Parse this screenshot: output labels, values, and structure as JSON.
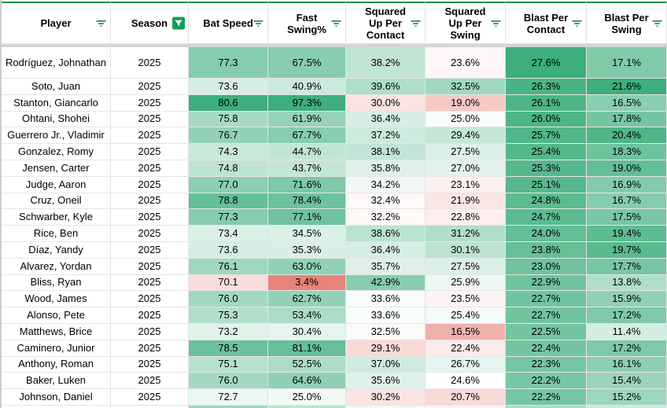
{
  "app": "spreadsheet-filtered-table",
  "columns": [
    {
      "id": "player",
      "label": "Player",
      "type": "text",
      "filter": "inactive"
    },
    {
      "id": "season",
      "label": "Season",
      "type": "text",
      "filter": "active"
    },
    {
      "id": "bat_speed",
      "label": "Bat Speed",
      "type": "heat",
      "suffix": "",
      "filter": "inactive",
      "scale": {
        "min": 65.0,
        "mid": 71.8,
        "max": 80.6
      }
    },
    {
      "id": "fast_swing_pct",
      "label": "Fast Swing%",
      "type": "heat",
      "suffix": "%",
      "filter": "inactive",
      "scale": {
        "min": 2.5,
        "mid": 20.0,
        "max": 97.3
      }
    },
    {
      "id": "squared_up_per_contact",
      "label": "Squared Up Per Contact",
      "type": "heat",
      "suffix": "%",
      "filter": "inactive",
      "scale": {
        "min": 19.0,
        "mid": 33.0,
        "max": 49.0
      }
    },
    {
      "id": "squared_up_per_swing",
      "label": "Squared Up Per Swing",
      "type": "heat",
      "suffix": "%",
      "filter": "inactive",
      "scale": {
        "min": 11.0,
        "mid": 24.5,
        "max": 41.0
      }
    },
    {
      "id": "blast_per_contact",
      "label": "Blast Per Contact",
      "type": "heat",
      "suffix": "%",
      "filter": "inactive",
      "scale": {
        "min": 0.0,
        "mid": 9.6,
        "max": 27.6
      }
    },
    {
      "id": "blast_per_swing",
      "label": "Blast Per Swing",
      "type": "heat",
      "suffix": "%",
      "filter": "inactive",
      "scale": {
        "min": 0.0,
        "mid": 8.5,
        "max": 21.6
      }
    }
  ],
  "chart_data": {
    "type": "table",
    "title": "Bat tracking leaderboard, 2025 season, sorted by Blast Per Contact",
    "categories": [
      "Player",
      "Season",
      "Bat Speed",
      "Fast Swing%",
      "Squared Up Per Contact",
      "Squared Up Per Swing",
      "Blast Per Contact",
      "Blast Per Swing"
    ],
    "rows": [
      {
        "player": "Rodríguez, Johnathan",
        "season": "2025",
        "bat_speed": 77.3,
        "fast_swing_pct": 67.5,
        "squared_up_per_contact": 38.2,
        "squared_up_per_swing": 23.6,
        "blast_per_contact": 27.6,
        "blast_per_swing": 17.1
      },
      {
        "player": "Soto, Juan",
        "season": "2025",
        "bat_speed": 73.6,
        "fast_swing_pct": 40.9,
        "squared_up_per_contact": 39.6,
        "squared_up_per_swing": 32.5,
        "blast_per_contact": 26.3,
        "blast_per_swing": 21.6
      },
      {
        "player": "Stanton, Giancarlo",
        "season": "2025",
        "bat_speed": 80.6,
        "fast_swing_pct": 97.3,
        "squared_up_per_contact": 30.0,
        "squared_up_per_swing": 19.0,
        "blast_per_contact": 26.1,
        "blast_per_swing": 16.5
      },
      {
        "player": "Ohtani, Shohei",
        "season": "2025",
        "bat_speed": 75.8,
        "fast_swing_pct": 61.9,
        "squared_up_per_contact": 36.4,
        "squared_up_per_swing": 25.0,
        "blast_per_contact": 26.0,
        "blast_per_swing": 17.8
      },
      {
        "player": "Guerrero Jr., Vladimir",
        "season": "2025",
        "bat_speed": 76.7,
        "fast_swing_pct": 67.7,
        "squared_up_per_contact": 37.2,
        "squared_up_per_swing": 29.4,
        "blast_per_contact": 25.7,
        "blast_per_swing": 20.4
      },
      {
        "player": "Gonzalez, Romy",
        "season": "2025",
        "bat_speed": 74.3,
        "fast_swing_pct": 44.7,
        "squared_up_per_contact": 38.1,
        "squared_up_per_swing": 27.5,
        "blast_per_contact": 25.4,
        "blast_per_swing": 18.3
      },
      {
        "player": "Jensen, Carter",
        "season": "2025",
        "bat_speed": 74.8,
        "fast_swing_pct": 43.7,
        "squared_up_per_contact": 35.8,
        "squared_up_per_swing": 27.0,
        "blast_per_contact": 25.3,
        "blast_per_swing": 19.0
      },
      {
        "player": "Judge, Aaron",
        "season": "2025",
        "bat_speed": 77.0,
        "fast_swing_pct": 71.6,
        "squared_up_per_contact": 34.2,
        "squared_up_per_swing": 23.1,
        "blast_per_contact": 25.1,
        "blast_per_swing": 16.9
      },
      {
        "player": "Cruz, Oneil",
        "season": "2025",
        "bat_speed": 78.8,
        "fast_swing_pct": 78.4,
        "squared_up_per_contact": 32.4,
        "squared_up_per_swing": 21.9,
        "blast_per_contact": 24.8,
        "blast_per_swing": 16.7
      },
      {
        "player": "Schwarber, Kyle",
        "season": "2025",
        "bat_speed": 77.3,
        "fast_swing_pct": 77.1,
        "squared_up_per_contact": 32.2,
        "squared_up_per_swing": 22.8,
        "blast_per_contact": 24.7,
        "blast_per_swing": 17.5
      },
      {
        "player": "Rice, Ben",
        "season": "2025",
        "bat_speed": 73.4,
        "fast_swing_pct": 34.5,
        "squared_up_per_contact": 38.6,
        "squared_up_per_swing": 31.2,
        "blast_per_contact": 24.0,
        "blast_per_swing": 19.4
      },
      {
        "player": "Díaz, Yandy",
        "season": "2025",
        "bat_speed": 73.6,
        "fast_swing_pct": 35.3,
        "squared_up_per_contact": 36.4,
        "squared_up_per_swing": 30.1,
        "blast_per_contact": 23.8,
        "blast_per_swing": 19.7
      },
      {
        "player": "Alvarez, Yordan",
        "season": "2025",
        "bat_speed": 76.1,
        "fast_swing_pct": 63.0,
        "squared_up_per_contact": 35.7,
        "squared_up_per_swing": 27.5,
        "blast_per_contact": 23.0,
        "blast_per_swing": 17.7
      },
      {
        "player": "Bliss, Ryan",
        "season": "2025",
        "bat_speed": 70.1,
        "fast_swing_pct": 3.4,
        "squared_up_per_contact": 42.9,
        "squared_up_per_swing": 25.9,
        "blast_per_contact": 22.9,
        "blast_per_swing": 13.8
      },
      {
        "player": "Wood, James",
        "season": "2025",
        "bat_speed": 76.0,
        "fast_swing_pct": 62.7,
        "squared_up_per_contact": 33.6,
        "squared_up_per_swing": 23.5,
        "blast_per_contact": 22.7,
        "blast_per_swing": 15.9
      },
      {
        "player": "Alonso, Pete",
        "season": "2025",
        "bat_speed": 75.3,
        "fast_swing_pct": 53.4,
        "squared_up_per_contact": 33.6,
        "squared_up_per_swing": 25.4,
        "blast_per_contact": 22.7,
        "blast_per_swing": 17.2
      },
      {
        "player": "Matthews, Brice",
        "season": "2025",
        "bat_speed": 73.2,
        "fast_swing_pct": 30.4,
        "squared_up_per_contact": 32.5,
        "squared_up_per_swing": 16.5,
        "blast_per_contact": 22.5,
        "blast_per_swing": 11.4
      },
      {
        "player": "Caminero, Junior",
        "season": "2025",
        "bat_speed": 78.5,
        "fast_swing_pct": 81.1,
        "squared_up_per_contact": 29.1,
        "squared_up_per_swing": 22.4,
        "blast_per_contact": 22.4,
        "blast_per_swing": 17.2
      },
      {
        "player": "Anthony, Roman",
        "season": "2025",
        "bat_speed": 75.1,
        "fast_swing_pct": 52.5,
        "squared_up_per_contact": 37.0,
        "squared_up_per_swing": 26.7,
        "blast_per_contact": 22.3,
        "blast_per_swing": 16.1
      },
      {
        "player": "Baker, Luken",
        "season": "2025",
        "bat_speed": 76.0,
        "fast_swing_pct": 64.6,
        "squared_up_per_contact": 35.6,
        "squared_up_per_swing": 24.6,
        "blast_per_contact": 22.2,
        "blast_per_swing": 15.4
      },
      {
        "player": "Johnson, Daniel",
        "season": "2025",
        "bat_speed": 72.7,
        "fast_swing_pct": 25.0,
        "squared_up_per_contact": 30.2,
        "squared_up_per_swing": 20.7,
        "blast_per_contact": 22.2,
        "blast_per_swing": 15.2
      }
    ]
  },
  "partial_row_colors": [
    "#ffffff",
    "#ffffff",
    "#9ed6ba",
    "#bce4d1",
    "#f2faf6",
    "#fdf3f2",
    "#a9dcc6",
    "#cbeadd"
  ],
  "icons": {
    "header_filter": "filter-icon",
    "season_filter": "filter-active-icon"
  },
  "colors": {
    "accent_green_border": "#1E8C50",
    "filter_icon_green": "#1E8C50",
    "filter_active_bg": "#109D58",
    "heat_green": "#3DAE7D",
    "heat_red": "#E67C73",
    "heat_neutral": "#FFFFFF",
    "grid_line": "#E3E3E3",
    "header_divider": "#D5D5D5",
    "left_strip": "#CDCDCD",
    "text": "#000000"
  }
}
